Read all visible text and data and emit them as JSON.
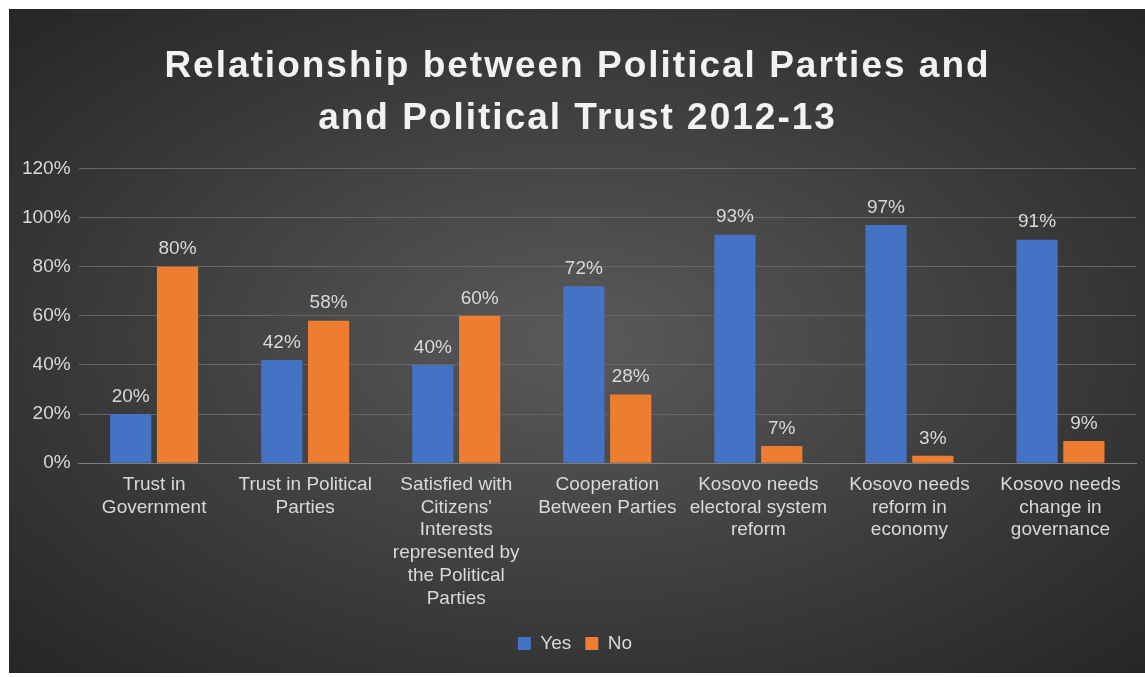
{
  "chart_data": {
    "type": "bar",
    "title": "Relationship between Political Parties and and Political Trust 2012-13",
    "categories": [
      "Trust in Government",
      "Trust in Political Parties",
      "Satisfied with Citizens' Interests represented by the Political Parties",
      "Cooperation Between Parties",
      "Kosovo needs electoral system reform",
      "Kosovo needs reform in economy",
      "Kosovo needs change in governance"
    ],
    "series": [
      {
        "name": "Yes",
        "color": "#4472c4",
        "values": [
          20,
          42,
          40,
          72,
          93,
          97,
          91
        ],
        "value_labels": [
          "20%",
          "42%",
          "40%",
          "72%",
          "93%",
          "97%",
          "91%"
        ]
      },
      {
        "name": "No",
        "color": "#ed7d31",
        "values": [
          80,
          58,
          60,
          28,
          7,
          3,
          9
        ],
        "value_labels": [
          "80%",
          "58%",
          "60%",
          "28%",
          "7%",
          "3%",
          "9%"
        ]
      }
    ],
    "ylim": [
      0,
      120
    ],
    "yticks": [
      {
        "value": 0,
        "label": "0%"
      },
      {
        "value": 20,
        "label": "20%"
      },
      {
        "value": 40,
        "label": "40%"
      },
      {
        "value": 60,
        "label": "60%"
      },
      {
        "value": 80,
        "label": "80%"
      },
      {
        "value": 100,
        "label": "100%"
      },
      {
        "value": 120,
        "label": "120%"
      }
    ],
    "grid": "y",
    "legend": "bottom"
  }
}
